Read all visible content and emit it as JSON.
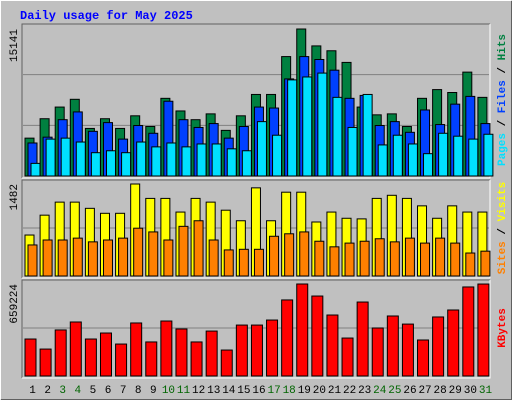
{
  "title": "Daily usage for May 2025",
  "legend_separator": " / ",
  "chart_data": [
    {
      "type": "bar",
      "ylim": [
        0,
        15141
      ],
      "yticks": [
        15141
      ],
      "series": [
        {
          "name": "Pages",
          "color": "#00e0ff",
          "values": [
            1300,
            3800,
            3900,
            3500,
            2400,
            2600,
            2400,
            3500,
            3000,
            3400,
            3000,
            3300,
            3300,
            2800,
            2600,
            5600,
            4200,
            9900,
            10200,
            10600,
            8100,
            5000,
            8400,
            3200,
            4200,
            3300,
            2300,
            4400,
            4100,
            3800,
            4300
          ]
        },
        {
          "name": "Files",
          "color": "#0040ff",
          "values": [
            3400,
            4000,
            5800,
            6600,
            4600,
            5500,
            3800,
            5200,
            4400,
            7700,
            5800,
            5000,
            5400,
            3900,
            5100,
            7100,
            7000,
            10000,
            12300,
            12000,
            10900,
            8000,
            8300,
            5200,
            5600,
            4500,
            6800,
            5300,
            7400,
            8200,
            5400
          ]
        },
        {
          "name": "Hits",
          "color": "#008040",
          "values": [
            3900,
            5900,
            7100,
            7900,
            4900,
            5900,
            4900,
            6200,
            5100,
            8000,
            6700,
            5800,
            6400,
            4700,
            6200,
            8400,
            8400,
            12300,
            15141,
            13400,
            12900,
            11700,
            7100,
            6300,
            6400,
            5100,
            8000,
            8900,
            8600,
            10700,
            8100
          ]
        }
      ]
    },
    {
      "type": "bar",
      "ylim": [
        0,
        1482
      ],
      "yticks": [
        1482
      ],
      "series": [
        {
          "name": "Sites",
          "color": "#ff8000",
          "values": [
            500,
            580,
            580,
            610,
            550,
            580,
            610,
            770,
            710,
            580,
            800,
            890,
            580,
            420,
            430,
            430,
            640,
            680,
            710,
            560,
            470,
            530,
            560,
            600,
            550,
            610,
            530,
            610,
            530,
            370,
            400
          ]
        },
        {
          "name": "Visits",
          "color": "#ffff00",
          "values": [
            660,
            980,
            1190,
            1190,
            1090,
            1010,
            1010,
            1482,
            1250,
            1250,
            1030,
            1250,
            1190,
            1060,
            890,
            1420,
            890,
            1350,
            1350,
            870,
            1030,
            930,
            920,
            1250,
            1300,
            1250,
            1130,
            930,
            1130,
            1030,
            1030
          ]
        }
      ]
    },
    {
      "type": "bar",
      "ylim": [
        0,
        659224
      ],
      "yticks": [
        659224
      ],
      "categories": [
        "1",
        "2",
        "3",
        "4",
        "5",
        "6",
        "7",
        "8",
        "9",
        "10",
        "11",
        "12",
        "13",
        "14",
        "15",
        "16",
        "17",
        "18",
        "19",
        "20",
        "21",
        "22",
        "23",
        "24",
        "25",
        "26",
        "27",
        "28",
        "29",
        "30",
        "31"
      ],
      "category_colors": [
        "#000000",
        "#000000",
        "#006400",
        "#006400",
        "#000000",
        "#000000",
        "#000000",
        "#000000",
        "#000000",
        "#006400",
        "#006400",
        "#000000",
        "#000000",
        "#000000",
        "#000000",
        "#000000",
        "#006400",
        "#006400",
        "#000000",
        "#000000",
        "#000000",
        "#000000",
        "#000000",
        "#006400",
        "#006400",
        "#000000",
        "#000000",
        "#000000",
        "#000000",
        "#000000",
        "#006400"
      ],
      "series": [
        {
          "name": "KBytes",
          "color": "#ff0000",
          "values": [
            265000,
            193000,
            330000,
            387000,
            265000,
            308000,
            229000,
            380000,
            244000,
            394000,
            337000,
            244000,
            322000,
            186000,
            365000,
            365000,
            401000,
            545000,
            659224,
            573000,
            437000,
            272000,
            530000,
            344000,
            430000,
            372000,
            258000,
            423000,
            473000,
            638000,
            659000
          ]
        }
      ]
    }
  ]
}
